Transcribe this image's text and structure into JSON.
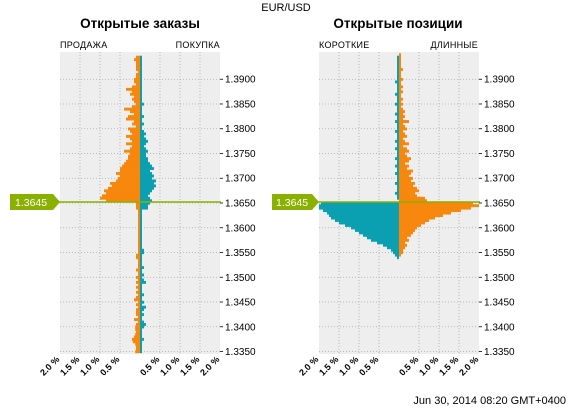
{
  "title": "EUR/USD",
  "timestamp": "Jun 30, 2014 08:20 GMT+0400",
  "current_price_label": "1.3645",
  "colors": {
    "left_side": "#f7870d",
    "right_side": "#0aa0b2",
    "price_line": "#8ab000",
    "plot_bg": "#eeeeee",
    "grid": "#aaaaaa"
  },
  "chart_data": [
    {
      "type": "bar",
      "orientation": "horizontal-butterfly",
      "title": "Открытые заказы",
      "left_label": "ПРОДАЖА",
      "right_label": "ПОКУПКА",
      "ylim": [
        1.3345,
        1.3955
      ],
      "yticks": [
        "1.3350",
        "1.3400",
        "1.3450",
        "1.3500",
        "1.3550",
        "1.3600",
        "1.3650",
        "1.3700",
        "1.3750",
        "1.3800",
        "1.3850",
        "1.3900"
      ],
      "xlim": [
        -2.0,
        2.0
      ],
      "xticks": [
        "2.0 %",
        "1.5 %",
        "1.0 %",
        "0.5 %",
        "0.5 %",
        "1.0 %",
        "1.5 %",
        "2.0 %"
      ],
      "current_price": 1.3645,
      "y_start": 1.335,
      "y_step": 0.0005,
      "series": [
        {
          "name": "ПРОДАЖА",
          "values": [
            0.12,
            0.1,
            0.1,
            0.12,
            0.18,
            0.2,
            0.15,
            0.12,
            0.1,
            0.12,
            0.12,
            0.1,
            0.05,
            0.15,
            0.05,
            0.1,
            0.1,
            0.1,
            0.05,
            0.1,
            0.05,
            0.15,
            0.1,
            0.05,
            0.1,
            0.05,
            0.1,
            0.05,
            0.1,
            0.05,
            0.1,
            0.05,
            0.05,
            0.1,
            0.05,
            0.05,
            0.05,
            0.05,
            0.1,
            0.1,
            0.05,
            0.05,
            0.05,
            0.05,
            0.05,
            0.05,
            0.05,
            0.05,
            0.05,
            0.05,
            0.05,
            0.05,
            0.05,
            0.05,
            0.05,
            0.05,
            0.05,
            0.05,
            0.1,
            0.1,
            0.1,
            0.85,
            1.0,
            0.95,
            0.85,
            0.9,
            0.8,
            0.7,
            0.75,
            0.6,
            0.55,
            0.5,
            0.6,
            0.5,
            0.5,
            0.45,
            0.4,
            0.35,
            0.3,
            0.3,
            0.25,
            0.4,
            0.25,
            0.2,
            0.35,
            0.2,
            0.25,
            0.35,
            0.2,
            0.25,
            0.3,
            0.1,
            0.2,
            0.15,
            0.35,
            0.3,
            0.15,
            0.25,
            0.4,
            0.2,
            0.1,
            0.15,
            0.2,
            0.15,
            0.25,
            0.2,
            0.35,
            0.2,
            0.1,
            0.15,
            0.15,
            0.1,
            0.1,
            0.05,
            0.1,
            0.1,
            0.1,
            0.1,
            0.15,
            0.1
          ]
        },
        {
          "name": "ПОКУПКА",
          "values": [
            0.05,
            0.05,
            0.05,
            0.05,
            0.05,
            0.1,
            0.05,
            0.05,
            0.05,
            0.05,
            0.1,
            0.15,
            0.1,
            0.05,
            0.05,
            0.1,
            0.05,
            0.1,
            0.15,
            0.05,
            0.1,
            0.05,
            0.05,
            0.1,
            0.05,
            0.05,
            0.05,
            0.05,
            0.15,
            0.1,
            0.05,
            0.1,
            0.05,
            0.05,
            0.1,
            0.05,
            0.05,
            0.05,
            0.05,
            0.05,
            0.1,
            0.1,
            0.05,
            0.05,
            0.05,
            0.05,
            0.05,
            0.05,
            0.05,
            0.05,
            0.05,
            0.05,
            0.05,
            0.05,
            0.05,
            0.05,
            0.05,
            0.05,
            0.2,
            0.2,
            0.25,
            0.3,
            0.25,
            0.2,
            0.25,
            0.3,
            0.35,
            0.4,
            0.35,
            0.4,
            0.3,
            0.35,
            0.3,
            0.25,
            0.35,
            0.3,
            0.25,
            0.2,
            0.2,
            0.15,
            0.15,
            0.2,
            0.15,
            0.1,
            0.15,
            0.2,
            0.15,
            0.1,
            0.15,
            0.1,
            0.05,
            0.05,
            0.1,
            0.05,
            0.05,
            0.1,
            0.05,
            0.05,
            0.05,
            0.05,
            0.1,
            0.05,
            0.05,
            0.05,
            0.05,
            0.05,
            0.05,
            0.05,
            0.05,
            0.05,
            0.05,
            0.05,
            0.05,
            0.05,
            0.05,
            0.05,
            0.05,
            0.05,
            0.05,
            0.05
          ]
        }
      ]
    },
    {
      "type": "bar",
      "orientation": "horizontal-butterfly",
      "title": "Открытые позиции",
      "left_label": "КОРОТКИЕ",
      "right_label": "ДЛИННЫЕ",
      "ylim": [
        1.3345,
        1.3955
      ],
      "yticks": [
        "1.3350",
        "1.3400",
        "1.3450",
        "1.3500",
        "1.3550",
        "1.3600",
        "1.3650",
        "1.3700",
        "1.3750",
        "1.3800",
        "1.3850",
        "1.3900"
      ],
      "xlim": [
        -2.0,
        2.0
      ],
      "xticks": [
        "2.0 %",
        "1.5 %",
        "1.0 %",
        "0.5 %",
        "0.5 %",
        "1.0 %",
        "1.5 %",
        "2.0 %"
      ],
      "current_price": 1.3645,
      "y_start": 1.335,
      "y_step": 0.0005,
      "series": [
        {
          "name": "КОРОТКИЕ",
          "values": [
            0,
            0,
            0,
            0,
            0,
            0,
            0,
            0,
            0,
            0,
            0,
            0,
            0,
            0,
            0,
            0,
            0,
            0,
            0,
            0,
            0,
            0,
            0,
            0,
            0,
            0,
            0,
            0,
            0,
            0,
            0,
            0,
            0,
            0,
            0,
            0,
            0,
            0,
            0.05,
            0.1,
            0.15,
            0.2,
            0.3,
            0.4,
            0.55,
            0.7,
            0.8,
            0.9,
            1.0,
            1.1,
            1.2,
            1.35,
            1.5,
            1.6,
            1.7,
            1.75,
            1.8,
            1.9,
            2.0,
            2.0,
            1.95,
            0,
            0.05,
            0.05,
            0.1,
            0.05,
            0.05,
            0.05,
            0.1,
            0.05,
            0.05,
            0.05,
            0.1,
            0.05,
            0.05,
            0.1,
            0.05,
            0.05,
            0.1,
            0.05,
            0.05,
            0.05,
            0.1,
            0.05,
            0.05,
            0.1,
            0.05,
            0.05,
            0.05,
            0.1,
            0.05,
            0.05,
            0.05,
            0.1,
            0.05,
            0.05,
            0.1,
            0.05,
            0.05,
            0.05,
            0.1,
            0.05,
            0.05,
            0.05,
            0.1,
            0.05,
            0.05,
            0.05,
            0.05,
            0.1,
            0.05,
            0.05,
            0.05,
            0.05,
            0.05,
            0.05,
            0.05,
            0.05,
            0.05,
            0.05
          ]
        },
        {
          "name": "ДЛИННЫЕ",
          "values": [
            0,
            0,
            0,
            0,
            0,
            0,
            0,
            0,
            0,
            0,
            0,
            0,
            0,
            0,
            0,
            0,
            0,
            0,
            0,
            0,
            0,
            0,
            0,
            0,
            0,
            0,
            0,
            0,
            0,
            0,
            0,
            0,
            0,
            0,
            0,
            0,
            0,
            0,
            0,
            0.05,
            0.1,
            0.1,
            0.15,
            0.2,
            0.15,
            0.25,
            0.2,
            0.3,
            0.35,
            0.4,
            0.45,
            0.55,
            0.65,
            0.75,
            0.9,
            1.1,
            1.3,
            1.55,
            1.8,
            2.0,
            1.85,
            0.7,
            0.65,
            0.45,
            0.4,
            0.5,
            0.45,
            0.35,
            0.4,
            0.3,
            0.35,
            0.25,
            0.3,
            0.35,
            0.2,
            0.25,
            0.15,
            0.25,
            0.3,
            0.2,
            0.15,
            0.25,
            0.2,
            0.1,
            0.25,
            0.15,
            0.1,
            0.2,
            0.15,
            0.1,
            0.2,
            0.15,
            0.1,
            0.25,
            0.1,
            0.15,
            0.1,
            0.15,
            0.1,
            0.05,
            0.1,
            0.05,
            0.1,
            0.05,
            0.05,
            0.1,
            0.05,
            0.1,
            0.05,
            0.05,
            0.1,
            0.05,
            0.05,
            0.05,
            0.1,
            0.05,
            0.05,
            0.05,
            0.05,
            0.05,
            0.05
          ]
        }
      ]
    }
  ]
}
